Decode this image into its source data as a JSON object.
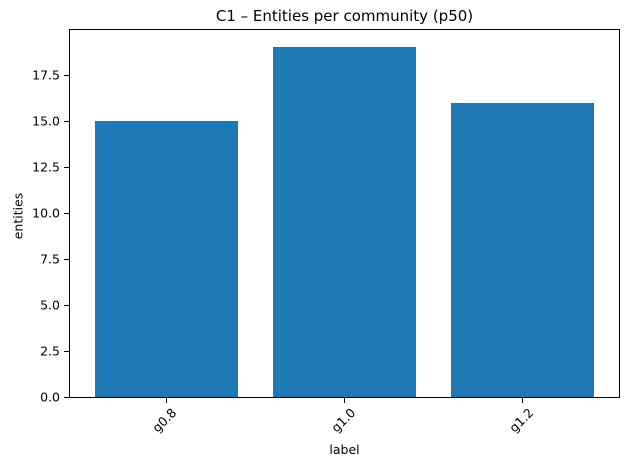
{
  "chart_data": {
    "type": "bar",
    "title": "C1 – Entities per community (p50)",
    "xlabel": "label",
    "ylabel": "entities",
    "categories": [
      "g0.8",
      "g1.0",
      "g1.2"
    ],
    "values": [
      15,
      19,
      16
    ],
    "bar_color": "#1f77b4",
    "ylim": [
      0,
      19.95
    ],
    "yticks": [
      0.0,
      2.5,
      5.0,
      7.5,
      10.0,
      12.5,
      15.0,
      17.5
    ],
    "ytick_labels": [
      "0.0",
      "2.5",
      "5.0",
      "7.5",
      "10.0",
      "12.5",
      "15.0",
      "17.5"
    ],
    "x_tick_rotation_deg": 45,
    "bar_width_fraction": 0.8,
    "grid": false,
    "background_color": "#ffffff",
    "spine_color": "#000000"
  }
}
